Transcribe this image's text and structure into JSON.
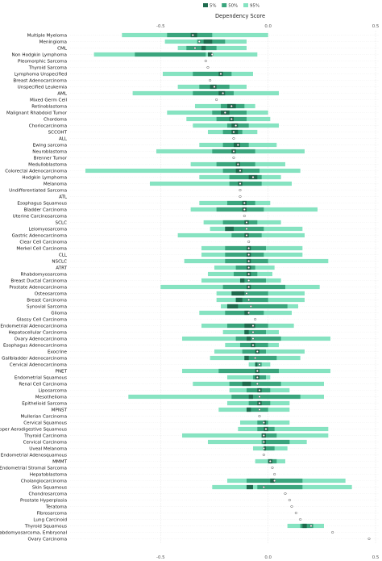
{
  "chart_data": {
    "type": "boxplot",
    "title": "Dependency Score",
    "xlim": [
      -1.0,
      0.5
    ],
    "x_ticks": [
      -0.5,
      0.0,
      0.5
    ],
    "x_tick_labels": [
      "-0.5",
      "0.0",
      "0.5"
    ],
    "grid": true,
    "legend": {
      "placement": "top-right",
      "entries": [
        {
          "label": "5%",
          "color": "#1f6b4e"
        },
        {
          "label": "50%",
          "color": "#3aa57d"
        },
        {
          "label": "95%",
          "color": "#86e3c1"
        }
      ]
    },
    "colors": {
      "outer": "#86e3c1",
      "inner": "#3aa57d",
      "core": "#1f6b4e",
      "dot": "#ffffff",
      "grid": "#cfcfcf"
    },
    "categories": [
      "Multiple Myeloma",
      "Meningioma",
      "CML",
      "Non Hodgkin Lymphoma",
      "Pleomorphic Sarcoma",
      "Thyroid Sarcoma",
      "Lymphoma Unspecified",
      "Breast Adenocarcinoma",
      "Unspecified Leukemia",
      "AML",
      "Mixed Germ Cell",
      "Retinoblastoma",
      "Malignant Rhabdoid Tumor",
      "Chordoma",
      "Choriocarcinoma",
      "SCCOHT",
      "ALL",
      "Ewing sarcoma",
      "Neuroblastoma",
      "Brenner Tumor",
      "Medulloblastoma",
      "Colorectal Adenocarcinoma",
      "Hodgkin Lymphoma",
      "Melanoma",
      "Undifferentiated Sarcoma",
      "ATL",
      "Esophagus Squamous",
      "Bladder Carcinoma",
      "Uterine Carcinosarcoma",
      "SCLC",
      "Leiomyosarcoma",
      "Gastric Adenocarcinoma",
      "Clear Cell Carcinoma",
      "Merkel Cell Carcinoma",
      "CLL",
      "NSCLC",
      "ATRT",
      "Rhabdomyosarcoma",
      "Breast Ductal Carcinoma",
      "Prostate Adenocarcinoma",
      "Osteosarcoma",
      "Breast Carcinoma",
      "Synovial Sarcoma",
      "Glioma",
      "Glassy Cell Carcinoma",
      "Endometrial Adenocarcinoma",
      "Hepatocellular Carcinoma",
      "Ovary Adenocarcinoma",
      "Esophagus Adenocarcinoma",
      "Exocrine",
      "Gallbladder Adenocarcinoma",
      "Cervical Adenocarcinoma",
      "PNET",
      "Endometrial Squamous",
      "Renal Cell Carcinoma",
      "Liposarcoma",
      "Mesothelioma",
      "Epithelioid Sarcoma",
      "MPNST",
      "Mullerian Carcinoma",
      "Cervical Squamous",
      "Upper Aerodigestive Squamous",
      "Thyroid Carcinoma",
      "Cervical Carcinoma",
      "Uveal Melanoma",
      "Endometrial Adenosquamous",
      "MMMT",
      "Endometrial Stromal Sarcoma",
      "Hepatoblastoma",
      "Cholangiocarcinoma",
      "Skin Squamous",
      "Chondrosarcoma",
      "Prostate Hyperplasia",
      "Teratoma",
      "Fibrosarcoma",
      "Lung Carcinoid",
      "Thyroid Squamous",
      "Rhabdomyosarcoma, Embryonal",
      "Ovary Carcinoma"
    ],
    "series": [
      {
        "name": "95%",
        "lower": [
          -0.68,
          -0.48,
          -0.42,
          -0.81,
          null,
          null,
          -0.49,
          null,
          -0.42,
          -0.63,
          null,
          -0.34,
          -0.47,
          -0.38,
          -0.35,
          -0.28,
          null,
          -0.32,
          -0.52,
          null,
          -0.36,
          -0.85,
          -0.32,
          -0.55,
          null,
          null,
          -0.32,
          -0.36,
          null,
          -0.3,
          -0.27,
          -0.42,
          null,
          -0.31,
          -0.31,
          -0.39,
          -0.25,
          -0.28,
          -0.31,
          -0.5,
          -0.24,
          -0.24,
          -0.22,
          -0.32,
          null,
          -0.31,
          -0.21,
          -0.4,
          -0.2,
          -0.25,
          -0.27,
          -0.09,
          -0.4,
          -0.19,
          -0.35,
          -0.18,
          -0.65,
          -0.19,
          -0.23,
          null,
          -0.13,
          -0.14,
          -0.4,
          -0.28,
          -0.07,
          null,
          -0.06,
          null,
          null,
          -0.19,
          -0.26,
          null,
          null,
          null,
          null,
          null,
          0.09,
          null,
          null
        ],
        "upper": [
          0.0,
          -0.1,
          -0.1,
          -0.05,
          null,
          null,
          -0.07,
          null,
          -0.1,
          0.05,
          null,
          -0.06,
          0.0,
          0.01,
          0.05,
          -0.05,
          null,
          0.04,
          0.17,
          null,
          0.08,
          0.15,
          0.06,
          0.11,
          null,
          null,
          0.01,
          0.23,
          null,
          0.06,
          0.16,
          0.17,
          null,
          0.16,
          0.16,
          0.28,
          0.03,
          0.02,
          0.06,
          0.24,
          0.17,
          0.17,
          0.14,
          0.11,
          null,
          0.12,
          0.05,
          0.29,
          0.05,
          0.17,
          0.15,
          0.01,
          0.29,
          0.01,
          0.26,
          0.1,
          0.26,
          0.1,
          0.1,
          null,
          0.1,
          0.28,
          0.28,
          0.18,
          0.09,
          null,
          0.08,
          null,
          null,
          0.36,
          0.39,
          null,
          null,
          null,
          null,
          null,
          0.26,
          null,
          null
        ]
      },
      {
        "name": "50%",
        "lower": [
          -0.47,
          -0.33,
          -0.38,
          -0.62,
          null,
          null,
          -0.35,
          null,
          -0.32,
          -0.35,
          null,
          -0.22,
          -0.26,
          -0.24,
          -0.19,
          -0.21,
          null,
          -0.21,
          -0.26,
          null,
          -0.24,
          -0.21,
          -0.18,
          -0.18,
          null,
          null,
          -0.19,
          -0.24,
          null,
          -0.21,
          -0.2,
          -0.17,
          null,
          -0.2,
          -0.2,
          -0.2,
          -0.15,
          -0.16,
          -0.13,
          -0.21,
          -0.15,
          -0.15,
          -0.19,
          -0.2,
          null,
          -0.19,
          -0.11,
          -0.15,
          -0.13,
          -0.12,
          -0.11,
          -0.06,
          -0.23,
          -0.07,
          -0.18,
          -0.1,
          -0.17,
          -0.09,
          -0.1,
          null,
          -0.05,
          -0.05,
          -0.03,
          -0.03,
          -0.02,
          null,
          0.0,
          null,
          null,
          -0.1,
          -0.05,
          null,
          null,
          null,
          null,
          null,
          0.15,
          null,
          null
        ],
        "upper": [
          -0.26,
          -0.2,
          -0.24,
          -0.29,
          null,
          null,
          -0.17,
          null,
          -0.18,
          -0.16,
          null,
          -0.11,
          -0.1,
          -0.1,
          -0.09,
          -0.12,
          null,
          -0.09,
          -0.06,
          null,
          -0.06,
          -0.04,
          -0.03,
          -0.03,
          null,
          null,
          -0.06,
          -0.02,
          null,
          -0.05,
          -0.02,
          -0.03,
          null,
          -0.01,
          -0.02,
          0.0,
          -0.06,
          -0.05,
          -0.01,
          0.08,
          0.0,
          0.0,
          0.09,
          -0.02,
          null,
          0.0,
          -0.01,
          0.06,
          0.0,
          -0.01,
          0.04,
          -0.03,
          0.05,
          -0.01,
          0.06,
          0.01,
          0.15,
          0.01,
          0.0,
          null,
          0.0,
          0.03,
          0.04,
          0.1,
          0.03,
          null,
          0.04,
          null,
          null,
          0.16,
          0.16,
          null,
          null,
          null,
          null,
          null,
          0.21,
          null,
          null
        ]
      },
      {
        "name": "5%",
        "lower": [
          -0.36,
          -0.3,
          -0.31,
          -0.28,
          null,
          null,
          -0.23,
          null,
          -0.27,
          -0.23,
          null,
          -0.19,
          -0.22,
          -0.18,
          -0.17,
          -0.17,
          null,
          -0.16,
          -0.17,
          null,
          -0.15,
          -0.15,
          -0.09,
          -0.14,
          null,
          null,
          -0.12,
          -0.12,
          null,
          -0.11,
          -0.2,
          -0.11,
          null,
          -0.1,
          -0.1,
          -0.1,
          -0.1,
          -0.1,
          -0.13,
          -0.1,
          -0.17,
          -0.15,
          -0.19,
          -0.11,
          null,
          -0.11,
          -0.11,
          -0.1,
          -0.08,
          -0.06,
          -0.11,
          -0.06,
          -0.06,
          -0.06,
          -0.12,
          -0.05,
          -0.09,
          -0.05,
          -0.1,
          null,
          -0.02,
          -0.02,
          -0.03,
          -0.02,
          -0.02,
          null,
          0.0,
          null,
          null,
          0.01,
          -0.1,
          null,
          null,
          null,
          null,
          null,
          0.16,
          null,
          null
        ],
        "upper": [
          -0.33,
          -0.26,
          -0.29,
          -0.26,
          null,
          null,
          -0.21,
          null,
          -0.24,
          -0.2,
          null,
          -0.15,
          -0.18,
          -0.16,
          -0.14,
          -0.14,
          null,
          -0.13,
          -0.15,
          null,
          -0.13,
          -0.12,
          -0.05,
          -0.12,
          null,
          null,
          -0.1,
          -0.1,
          null,
          -0.09,
          -0.16,
          -0.09,
          null,
          -0.08,
          -0.08,
          -0.08,
          -0.08,
          -0.08,
          -0.11,
          -0.08,
          -0.11,
          -0.12,
          -0.14,
          -0.09,
          null,
          -0.06,
          -0.09,
          -0.08,
          -0.06,
          -0.04,
          -0.09,
          -0.05,
          -0.04,
          -0.04,
          -0.08,
          -0.03,
          -0.07,
          -0.03,
          -0.08,
          null,
          -0.01,
          0.0,
          -0.01,
          -0.01,
          -0.01,
          null,
          0.02,
          null,
          null,
          0.03,
          -0.07,
          null,
          null,
          null,
          null,
          null,
          0.18,
          null,
          null
        ]
      },
      {
        "name": "median",
        "values": [
          -0.35,
          -0.32,
          -0.34,
          -0.26,
          -0.29,
          -0.28,
          -0.22,
          -0.27,
          -0.25,
          -0.21,
          -0.24,
          -0.17,
          -0.2,
          -0.17,
          -0.15,
          -0.16,
          -0.16,
          -0.14,
          -0.16,
          -0.16,
          -0.14,
          -0.13,
          -0.07,
          -0.13,
          -0.13,
          -0.13,
          -0.11,
          -0.11,
          -0.11,
          -0.1,
          -0.1,
          -0.1,
          -0.09,
          -0.09,
          -0.09,
          -0.09,
          -0.09,
          -0.09,
          -0.09,
          -0.09,
          -0.1,
          -0.09,
          -0.08,
          -0.09,
          -0.06,
          -0.07,
          -0.07,
          -0.07,
          -0.07,
          -0.05,
          -0.06,
          -0.04,
          -0.05,
          -0.05,
          -0.05,
          -0.04,
          -0.04,
          -0.04,
          -0.04,
          -0.04,
          -0.02,
          -0.01,
          -0.02,
          -0.02,
          -0.02,
          -0.02,
          0.01,
          0.02,
          0.03,
          0.03,
          -0.02,
          0.08,
          0.1,
          0.11,
          0.13,
          0.15,
          0.2,
          0.3,
          0.47
        ]
      }
    ]
  }
}
